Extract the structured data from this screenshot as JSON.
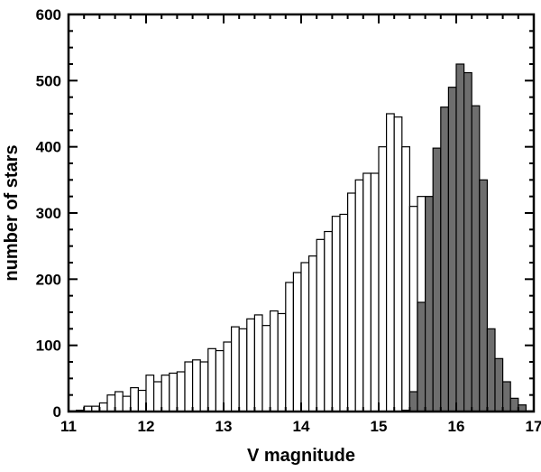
{
  "chart_data": {
    "type": "bar",
    "title": "",
    "xlabel": "V magnitude",
    "ylabel": "number of stars",
    "xlim": [
      11,
      17
    ],
    "ylim": [
      0,
      600
    ],
    "x_ticks": [
      "11",
      "12",
      "13",
      "14",
      "15",
      "16",
      "17"
    ],
    "y_ticks": [
      "0",
      "100",
      "200",
      "300",
      "400",
      "500",
      "600"
    ],
    "bin_width": 0.1,
    "grid": false,
    "legend": "none",
    "series": [
      {
        "fill": "#ffffff",
        "stroke": "#000000",
        "bin_start": [
          11.0,
          11.1,
          11.2,
          11.3,
          11.4,
          11.5,
          11.6,
          11.7,
          11.8,
          11.9,
          12.0,
          12.1,
          12.2,
          12.3,
          12.4,
          12.5,
          12.6,
          12.7,
          12.8,
          12.9,
          13.0,
          13.1,
          13.2,
          13.3,
          13.4,
          13.5,
          13.6,
          13.7,
          13.8,
          13.9,
          14.0,
          14.1,
          14.2,
          14.3,
          14.4,
          14.5,
          14.6,
          14.7,
          14.8,
          14.9,
          15.0,
          15.1,
          15.2,
          15.3,
          15.4,
          15.5,
          15.6,
          15.7
        ],
        "values": [
          1,
          2,
          8,
          8,
          13,
          25,
          30,
          23,
          36,
          32,
          55,
          45,
          55,
          58,
          60,
          75,
          78,
          75,
          95,
          92,
          105,
          128,
          125,
          140,
          146,
          130,
          152,
          148,
          195,
          210,
          225,
          235,
          260,
          272,
          295,
          298,
          330,
          350,
          360,
          360,
          400,
          450,
          445,
          400,
          310,
          325,
          250,
          200
        ]
      },
      {
        "fill": "#6e6e6e",
        "stroke": "#000000",
        "bin_start": [
          15.3,
          15.4,
          15.5,
          15.6,
          15.7,
          15.8,
          15.9,
          16.0,
          16.1,
          16.2,
          16.3,
          16.4,
          16.5,
          16.6,
          16.7,
          16.8,
          16.9
        ],
        "values": [
          2,
          30,
          165,
          325,
          398,
          460,
          490,
          525,
          512,
          462,
          350,
          125,
          80,
          45,
          20,
          10,
          1
        ]
      }
    ]
  }
}
